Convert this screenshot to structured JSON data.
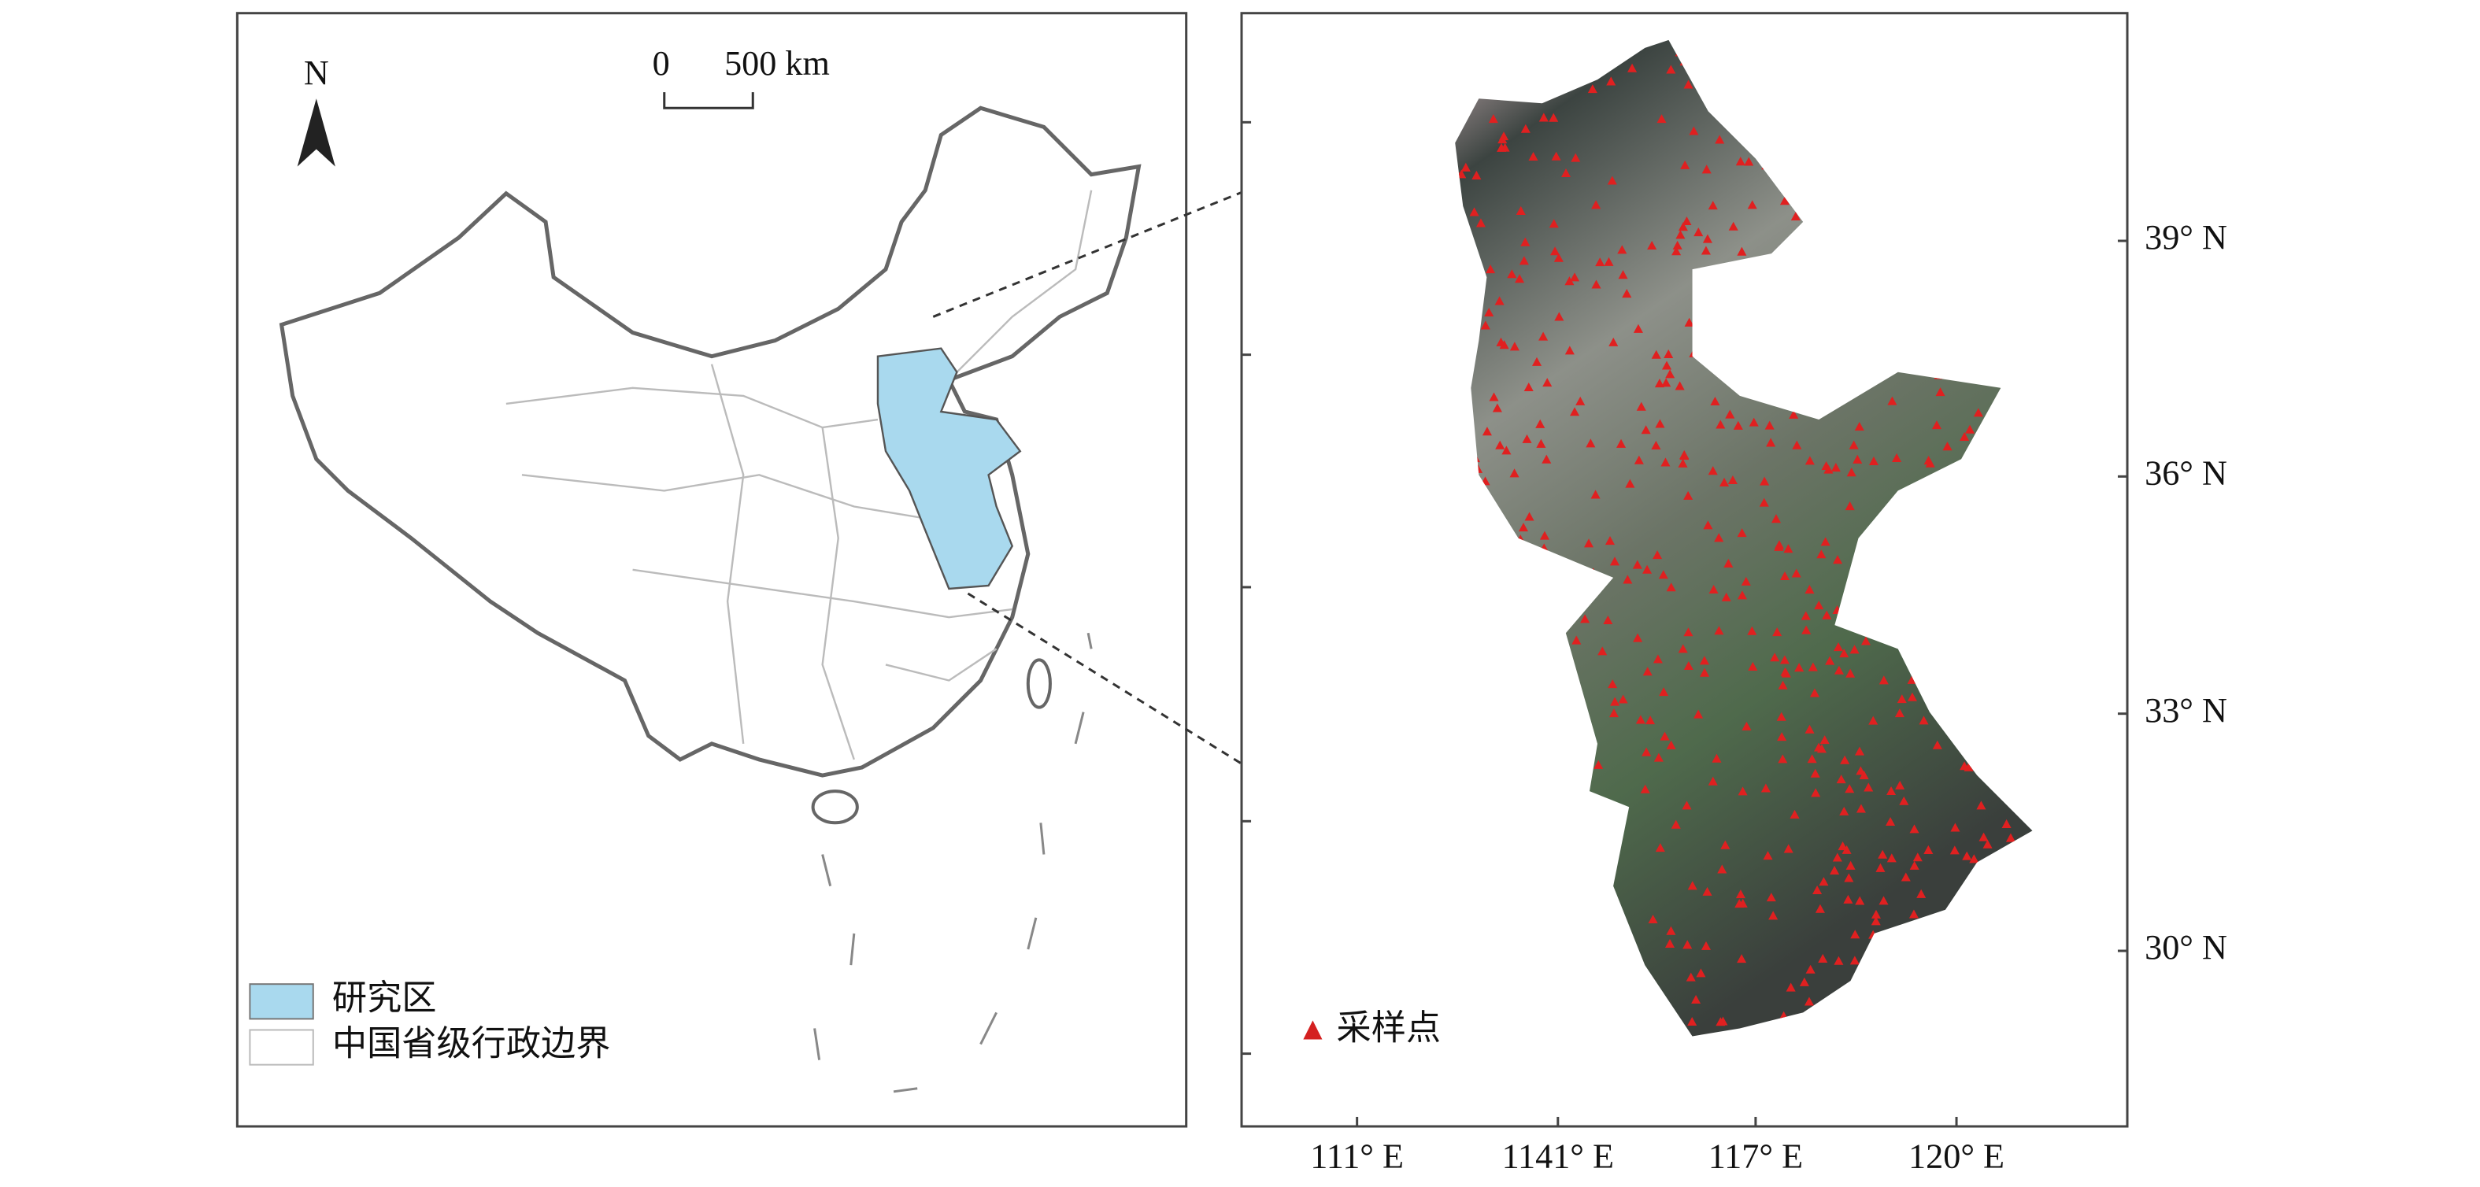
{
  "north_label": "N",
  "scale_bar": {
    "start": "0",
    "end": "500 km"
  },
  "legend": [
    "研究区",
    "中国省级行政边界"
  ],
  "inset_legend": "采样点",
  "x_axis": {
    "labels": [
      "111° E",
      "1141° E",
      "117° E",
      "120° E"
    ]
  },
  "y_axis": {
    "labels": [
      "39° N",
      "36° N",
      "33° N",
      "30° N"
    ]
  }
}
